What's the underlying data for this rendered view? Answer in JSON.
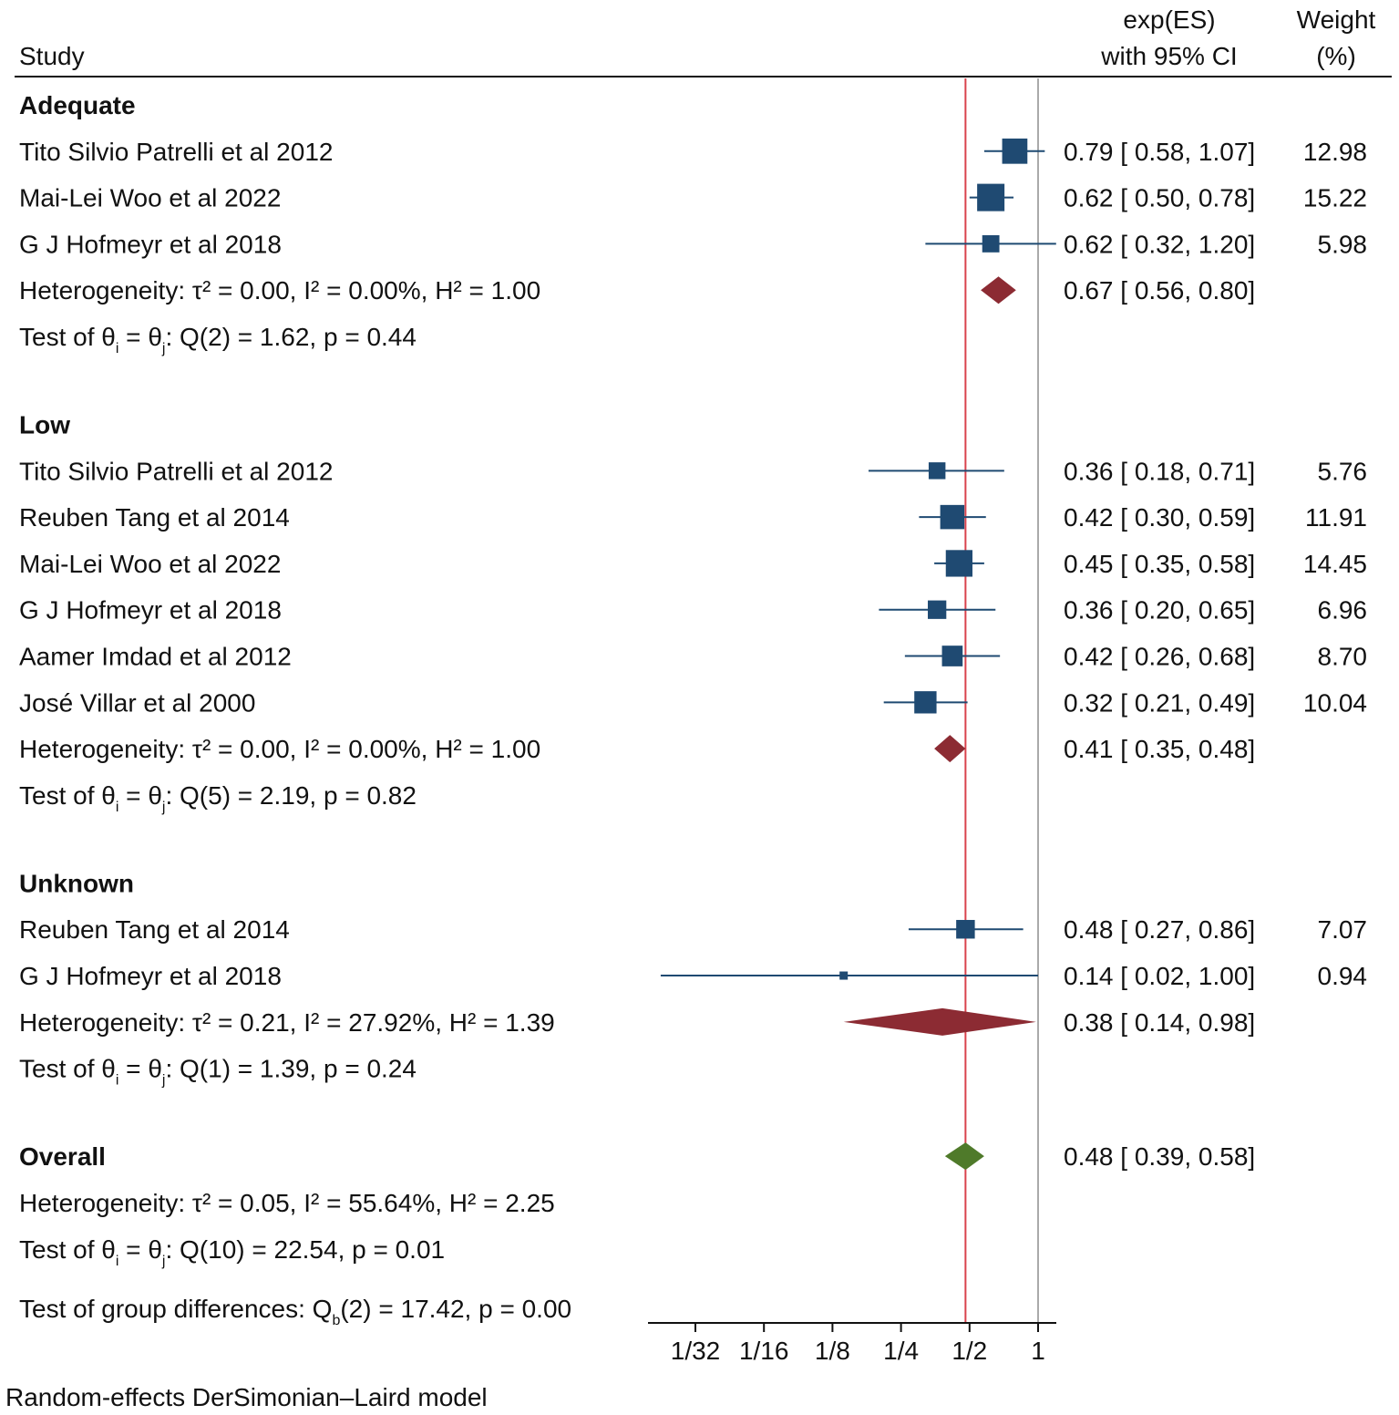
{
  "header": {
    "study_label": "Study",
    "es_line1": "exp(ES)",
    "es_line2": "with 95% CI",
    "weight_line1": "Weight",
    "weight_line2": "(%)"
  },
  "footer_note": "Random-effects DerSimonian–Laird model",
  "colors": {
    "study_marker": "#1f4a72",
    "subgroup_diamond": "#8c2b33",
    "overall_diamond": "#4f7a2a",
    "null_line": "#aaaaaa",
    "overall_line": "#d9434d",
    "text": "#111111"
  },
  "chart_data": {
    "type": "forest",
    "x_scale": "log2",
    "xlim": [
      0.022,
      1.04
    ],
    "x_ticks": [
      {
        "value": 0.03125,
        "label": "1/32"
      },
      {
        "value": 0.0625,
        "label": "1/16"
      },
      {
        "value": 0.125,
        "label": "1/8"
      },
      {
        "value": 0.25,
        "label": "1/4"
      },
      {
        "value": 0.5,
        "label": "1/2"
      },
      {
        "value": 1,
        "label": "1"
      }
    ],
    "null_value": 1,
    "overall_value": 0.48,
    "groups": [
      {
        "name": "Adequate",
        "studies": [
          {
            "study": "Tito Silvio Patrelli et al  2012",
            "es": 0.79,
            "lo": 0.58,
            "hi": 1.07,
            "es_text": "0.79 [ 0.58,  1.07]",
            "weight": "12.98",
            "w": 12.98
          },
          {
            "study": "Mai-Lei Woo  et al 2022",
            "es": 0.62,
            "lo": 0.5,
            "hi": 0.78,
            "es_text": "0.62 [ 0.50,  0.78]",
            "weight": "15.22",
            "w": 15.22
          },
          {
            "study": "G J Hofmeyr et al 2018",
            "es": 0.62,
            "lo": 0.32,
            "hi": 1.2,
            "es_text": "0.62 [ 0.32,  1.20]",
            "weight": "5.98",
            "w": 5.98
          }
        ],
        "heterogeneity": "Heterogeneity: τ² = 0.00, I² = 0.00%, H² = 1.00",
        "pooled": {
          "es": 0.67,
          "lo": 0.56,
          "hi": 0.8,
          "es_text": "0.67 [ 0.56,  0.80]"
        },
        "test": {
          "q": "Q(2) = 1.62, p = 0.44"
        }
      },
      {
        "name": "Low",
        "studies": [
          {
            "study": "Tito Silvio Patrelli et al  2012",
            "es": 0.36,
            "lo": 0.18,
            "hi": 0.71,
            "es_text": "0.36 [ 0.18,  0.71]",
            "weight": "5.76",
            "w": 5.76
          },
          {
            "study": "Reuben Tang et al 2014",
            "es": 0.42,
            "lo": 0.3,
            "hi": 0.59,
            "es_text": "0.42 [ 0.30,  0.59]",
            "weight": "11.91",
            "w": 11.91
          },
          {
            "study": "Mai-Lei Woo  et al 2022",
            "es": 0.45,
            "lo": 0.35,
            "hi": 0.58,
            "es_text": "0.45 [ 0.35,  0.58]",
            "weight": "14.45",
            "w": 14.45
          },
          {
            "study": "G J Hofmeyr et al 2018",
            "es": 0.36,
            "lo": 0.2,
            "hi": 0.65,
            "es_text": "0.36 [ 0.20,  0.65]",
            "weight": "6.96",
            "w": 6.96
          },
          {
            "study": "Aamer Imdad et al 2012",
            "es": 0.42,
            "lo": 0.26,
            "hi": 0.68,
            "es_text": "0.42 [ 0.26,  0.68]",
            "weight": "8.70",
            "w": 8.7
          },
          {
            "study": "José Villar et al 2000",
            "es": 0.32,
            "lo": 0.21,
            "hi": 0.49,
            "es_text": "0.32 [ 0.21,  0.49]",
            "weight": "10.04",
            "w": 10.04
          }
        ],
        "heterogeneity": "Heterogeneity: τ² = 0.00, I² = 0.00%, H² = 1.00",
        "pooled": {
          "es": 0.41,
          "lo": 0.35,
          "hi": 0.48,
          "es_text": "0.41 [ 0.35,  0.48]"
        },
        "test": {
          "q": "Q(5) = 2.19, p = 0.82"
        }
      },
      {
        "name": "Unknown",
        "studies": [
          {
            "study": "Reuben Tang et al 2014",
            "es": 0.48,
            "lo": 0.27,
            "hi": 0.86,
            "es_text": "0.48 [ 0.27,  0.86]",
            "weight": "7.07",
            "w": 7.07
          },
          {
            "study": "G J Hofmeyr et al 2018",
            "es": 0.14,
            "lo": 0.02,
            "hi": 1.0,
            "es_text": "0.14 [ 0.02,  1.00]",
            "weight": "0.94",
            "w": 0.94
          }
        ],
        "heterogeneity": "Heterogeneity: τ² = 0.21, I² = 27.92%, H² = 1.39",
        "pooled": {
          "es": 0.38,
          "lo": 0.14,
          "hi": 0.98,
          "es_text": "0.38 [ 0.14,  0.98]"
        },
        "test": {
          "q": "Q(1) = 1.39, p = 0.24"
        }
      }
    ],
    "overall": {
      "name": "Overall",
      "es": 0.48,
      "lo": 0.39,
      "hi": 0.58,
      "es_text": "0.48 [ 0.39,  0.58]",
      "heterogeneity": "Heterogeneity: τ² = 0.05, I² = 55.64%, H² = 2.25",
      "test": {
        "q": "Q(10) = 22.54, p = 0.01"
      }
    },
    "group_difference": {
      "prefix": "Test of group differences: Q",
      "sub": "b",
      "rest": "(2) = 17.42, p = 0.00"
    },
    "test_prefix": "Test of θ",
    "test_sub_i": "i",
    "test_eq": " = θ",
    "test_sub_j": "j",
    "test_colon": ": "
  }
}
